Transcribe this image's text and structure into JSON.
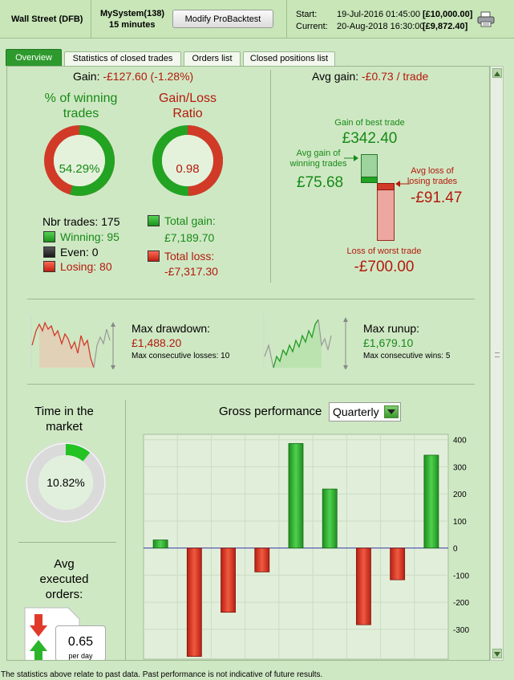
{
  "header": {
    "instrument": "Wall Street (DFB)",
    "system_name": "MySystem(138)",
    "timeframe": "15 minutes",
    "modify_button": "Modify ProBacktest",
    "start_label": "Start:",
    "start_date": "19-Jul-2016 01:45:00",
    "start_amount": "[£10,000.00]",
    "current_label": "Current:",
    "current_date": "20-Aug-2018 16:30:00",
    "current_amount": "[£9,872.40]",
    "print_icon": "printer-icon"
  },
  "tabs": [
    {
      "label": "Overview",
      "active": true
    },
    {
      "label": "Statistics of closed trades",
      "active": false
    },
    {
      "label": "Orders list",
      "active": false
    },
    {
      "label": "Closed positions list",
      "active": false
    }
  ],
  "gain": {
    "label": "Gain:",
    "value": "-£127.60 (-1.28%)",
    "pct_winning_title_1": "% of winning",
    "pct_winning_title_2": "trades",
    "pct_winning_value": "54.29%",
    "pct_winning_fraction": 0.5429,
    "ratio_title_1": "Gain/Loss",
    "ratio_title_2": "Ratio",
    "ratio_value": "0.98",
    "ratio_fraction": 0.495,
    "nbr_trades": "Nbr trades: 175",
    "winning": "Winning: 95",
    "even": "Even: 0",
    "losing": "Losing: 80",
    "total_gain_label": "Total gain:",
    "total_gain_value": "£7,189.70",
    "total_loss_label": "Total loss:",
    "total_loss_value": "-£7,317.30"
  },
  "avg_gain": {
    "label": "Avg gain:",
    "value": "-£0.73 / trade",
    "best_label": "Gain of best trade",
    "best_value": "£342.40",
    "avg_win_label_1": "Avg gain of",
    "avg_win_label_2": "winning trades",
    "avg_win_value": "£75.68",
    "avg_loss_label_1": "Avg loss of",
    "avg_loss_label_2": "losing trades",
    "avg_loss_value": "-£91.47",
    "worst_label": "Loss of worst trade",
    "worst_value": "-£700.00"
  },
  "drawdown": {
    "label": "Max drawdown:",
    "value": "£1,488.20",
    "consec": "Max consecutive losses: 10"
  },
  "runup": {
    "label": "Max runup:",
    "value": "£1,679.10",
    "consec": "Max consecutive wins: 5"
  },
  "market": {
    "title_1": "Time in the",
    "title_2": "market",
    "value": "10.82%",
    "fraction": 0.1082
  },
  "avg_orders": {
    "title_1": "Avg",
    "title_2": "executed",
    "title_3": "orders:",
    "value": "0.65",
    "unit": "per day"
  },
  "gross": {
    "title": "Gross performance",
    "period": "Quarterly"
  },
  "colors": {
    "green": "#22a322",
    "red": "#d23a28",
    "background": "#cfe8c4"
  },
  "chart_data": {
    "type": "bar",
    "title": "Gross performance",
    "categories": [
      "",
      "",
      "",
      "",
      "",
      "",
      "",
      "",
      ""
    ],
    "values": [
      30,
      -400,
      -237,
      -88,
      386,
      218,
      -283,
      -117,
      343
    ],
    "ylim": [
      -400,
      400
    ],
    "yticks": [
      "400",
      "300",
      "200",
      "100",
      "0",
      "-100",
      "-200",
      "-300"
    ],
    "grid": true
  },
  "footer": "The statistics above relate to past data. Past performance is not indicative of future results."
}
